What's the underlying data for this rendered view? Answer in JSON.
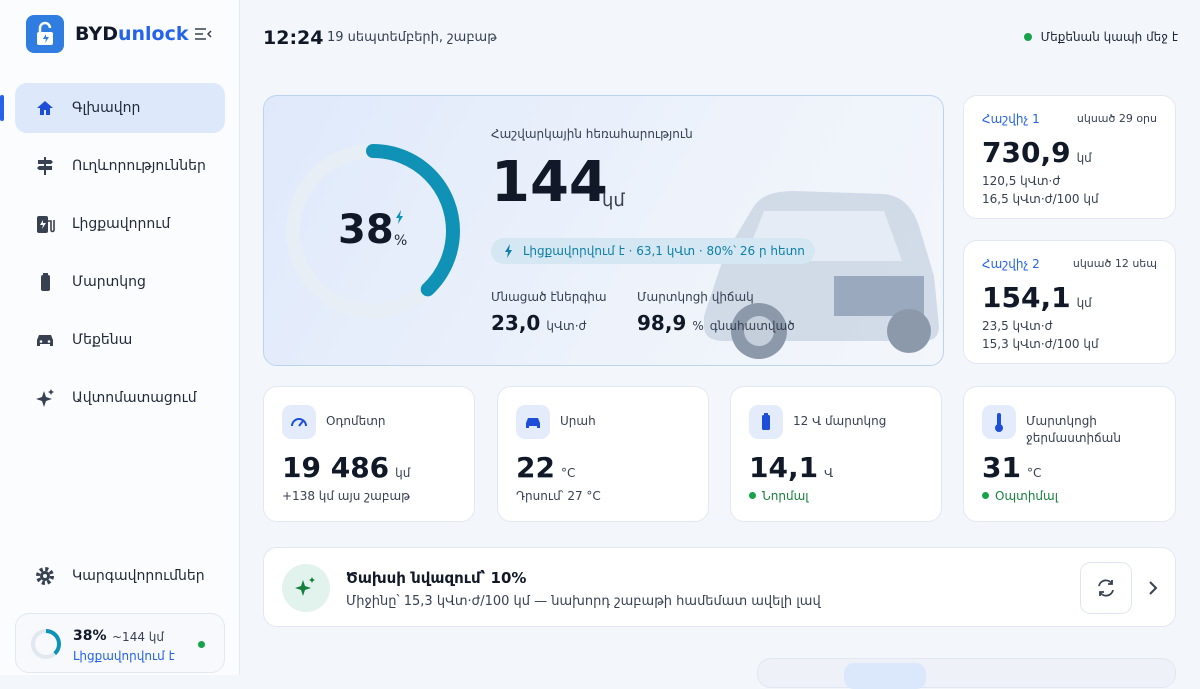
{
  "sidebar": {
    "brand": "BYD",
    "brand_accent": "unlock",
    "nav": [
      "Գլխավոր",
      "Ուղևորություններ",
      "Լիցքավորում",
      "Մարտկոց",
      "Մեքենա",
      "Ավտոմատացում"
    ],
    "settings": "Կարգավորումներ",
    "status_card": {
      "percent": "38%",
      "range": "~144 կմ",
      "state": "Լիցքավորվում է"
    }
  },
  "header": {
    "time": "12:24",
    "date": "19 սեպտեմբերի, շաբաթ",
    "connection": "Մեքենան կապի մեջ է"
  },
  "battery": {
    "level": 38,
    "unit": "%",
    "range_label": "Հաշվարկային հեռահարություն",
    "range_value": "144",
    "range_unit": "կմ",
    "charging": "Լիցքավորվում է · 63,1 կՎտ · 80%՝ 26 ր հետո",
    "energy_label": "Մնացած էներգիա",
    "energy_value": "23,0",
    "energy_unit": "կՎտ·ժ",
    "health_label": "Մարտկոցի վիճակ",
    "health_value": "98,9",
    "health_unit": "%",
    "health_note": "գնահատված"
  },
  "trips": [
    {
      "name": "Հաշվիչ 1",
      "since": "սկսած 29 օրս",
      "distance": "730,9",
      "unit": "կմ",
      "energy": "120,5 կՎտ·ժ",
      "consumption": "16,5 կՎտ·ժ/100 կմ"
    },
    {
      "name": "Հաշվիչ 2",
      "since": "սկսած 12 սեպ",
      "distance": "154,1",
      "unit": "կմ",
      "energy": "23,5 կՎտ·ժ",
      "consumption": "15,3 կՎտ·ժ/100 կմ"
    }
  ],
  "stats": [
    {
      "label": "Օդոմետր",
      "value": "19 486",
      "unit": "կմ",
      "note": "+138 կմ այս շաբաթ"
    },
    {
      "label": "Սրահ",
      "value": "22",
      "unit": "°C",
      "note": "Դրսում՝ 27 °C"
    },
    {
      "label": "12 Վ մարտկոց",
      "value": "14,1",
      "unit": "Վ",
      "note": "Նորմալ"
    },
    {
      "label": "Մարտկոցի ջերմաստիճան",
      "value": "31",
      "unit": "°C",
      "note": "Օպտիմալ"
    }
  ],
  "insight": {
    "title": "Ծախսի նվազում՝ 10%",
    "text": "Միջինը՝ 15,3 կՎտ·ժ/100 կմ — նախորդ շաբաթի համեմատ ավելի լավ"
  }
}
